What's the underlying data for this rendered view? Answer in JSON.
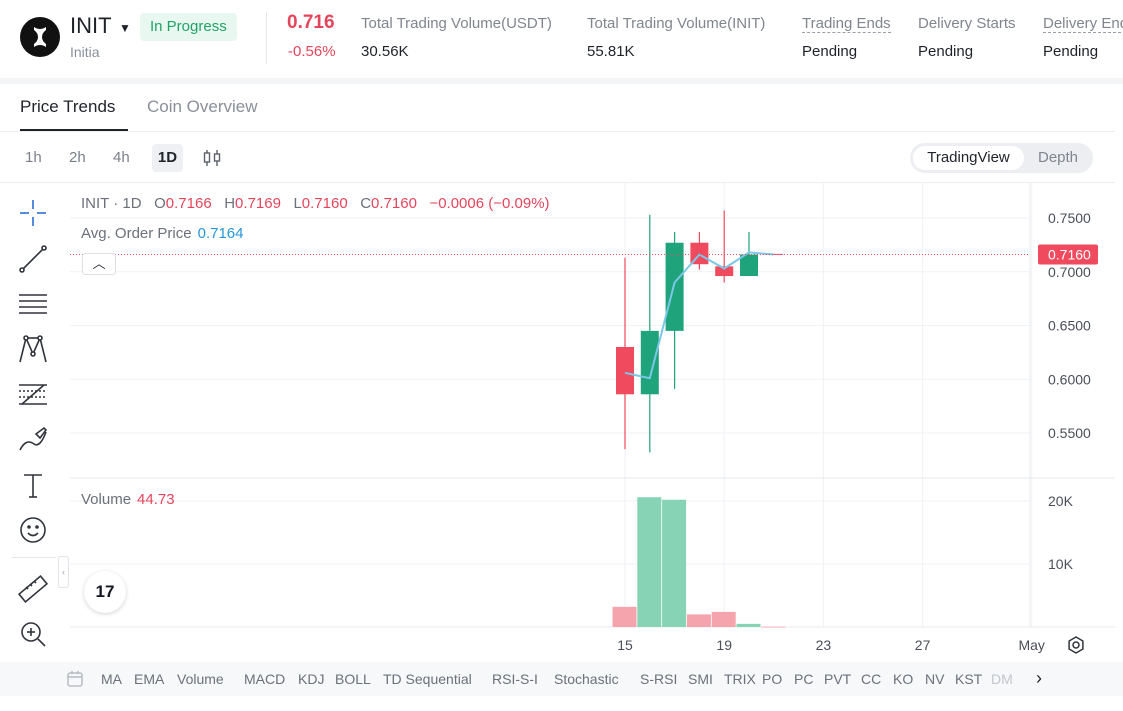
{
  "header": {
    "symbol": "INIT",
    "name": "Initia",
    "status": "In Progress",
    "price": "0.716",
    "change": "-0.56%",
    "stats": [
      {
        "label": "Total Trading Volume(USDT)",
        "value": "30.56K"
      },
      {
        "label": "Total Trading Volume(INIT)",
        "value": "55.81K"
      },
      {
        "label": "Trading Ends",
        "value": "Pending"
      },
      {
        "label": "Delivery Starts",
        "value": "Pending"
      },
      {
        "label": "Delivery Ends",
        "value": "Pending"
      }
    ]
  },
  "tabs": [
    "Price Trends",
    "Coin Overview"
  ],
  "intervals": [
    "1h",
    "2h",
    "4h",
    "1D"
  ],
  "view_toggle": {
    "active": "TradingView",
    "inactive": "Depth"
  },
  "drawing_tools": [
    "crosshair-icon",
    "trend-line-icon",
    "horizontal-lines-icon",
    "pattern-icon",
    "fib-icon",
    "brush-icon",
    "text-icon",
    "emoji-icon",
    "ruler-icon",
    "zoom-in-icon"
  ],
  "legend": {
    "symbol": "INIT",
    "interval": "1D",
    "o_label": "O",
    "o": "0.7166",
    "h_label": "H",
    "h": "0.7169",
    "l_label": "L",
    "l": "0.7160",
    "c_label": "C",
    "c": "0.7160",
    "change": "−0.0006 (−0.09%)"
  },
  "avg_order_price": {
    "label": "Avg. Order Price",
    "value": "0.7164"
  },
  "volume_legend": {
    "label": "Volume",
    "value": "44.73"
  },
  "tv_logo": "17",
  "colors": {
    "up": "#1fa37a",
    "down": "#f04a5e",
    "avg_line": "#7cc6e8",
    "up_vol": "#86d3b6",
    "down_vol": "#f5a4ad"
  },
  "chart_data": {
    "type": "candlestick",
    "date_labels": [
      "15",
      "19",
      "23",
      "27",
      "May"
    ],
    "price_axis_ticks": [
      "0.7500",
      "0.7000",
      "0.6500",
      "0.6000",
      "0.5500"
    ],
    "volume_axis_ticks": [
      "20K",
      "10K"
    ],
    "last_price_label": "0.7160",
    "ylim": [
      0.525,
      0.765
    ],
    "volume_ylim": [
      0,
      22000
    ],
    "candles": [
      {
        "date": "2025-04-15",
        "open": 0.63,
        "high": 0.713,
        "low": 0.535,
        "close": 0.586,
        "volume": 3200
      },
      {
        "date": "2025-04-16",
        "open": 0.586,
        "high": 0.753,
        "low": 0.532,
        "close": 0.645,
        "volume": 20600
      },
      {
        "date": "2025-04-17",
        "open": 0.645,
        "high": 0.737,
        "low": 0.591,
        "close": 0.727,
        "volume": 20200
      },
      {
        "date": "2025-04-18",
        "open": 0.727,
        "high": 0.737,
        "low": 0.702,
        "close": 0.707,
        "volume": 2000
      },
      {
        "date": "2025-04-19",
        "open": 0.705,
        "high": 0.757,
        "low": 0.69,
        "close": 0.696,
        "volume": 2400
      },
      {
        "date": "2025-04-20",
        "open": 0.696,
        "high": 0.737,
        "low": 0.696,
        "close": 0.716,
        "volume": 500
      },
      {
        "date": "2025-04-21",
        "open": 0.7166,
        "high": 0.7169,
        "low": 0.716,
        "close": 0.716,
        "volume": 44.73
      }
    ],
    "avg_order_price_series": [
      0.606,
      0.601,
      0.69,
      0.716,
      0.703,
      0.718,
      0.716
    ]
  },
  "indicators": [
    "MA",
    "EMA",
    "Volume",
    "MACD",
    "KDJ",
    "BOLL",
    "TD Sequential",
    "RSI-S-I",
    "Stochastic",
    "S-RSI",
    "SMI",
    "TRIX",
    "PO",
    "PC",
    "PVT",
    "CC",
    "KO",
    "NV",
    "KST",
    "DM"
  ]
}
